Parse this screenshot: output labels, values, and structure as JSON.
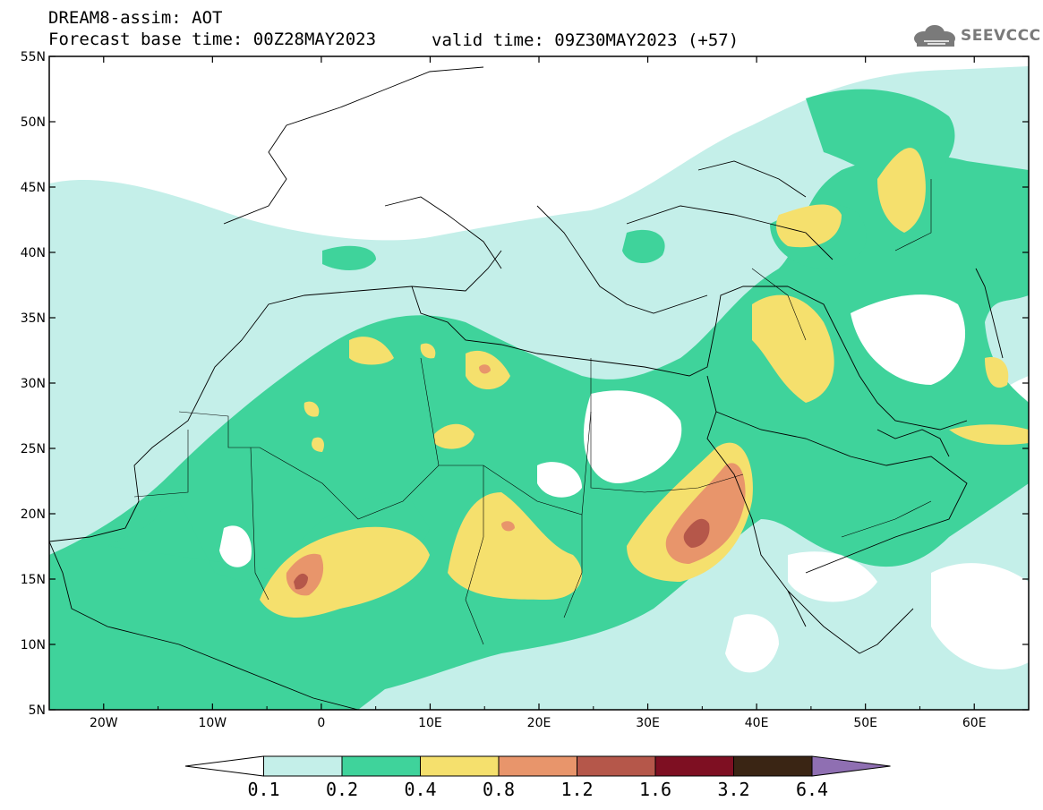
{
  "header": {
    "title": "DREAM8-assim: AOT",
    "base_time": "Forecast base time: 00Z28MAY2023",
    "valid_time": "valid time: 09Z30MAY2023 (+57)"
  },
  "logo": {
    "text": "SEEVCCC",
    "icon": "cloud-icon"
  },
  "map": {
    "lon_range": [
      -25,
      65
    ],
    "lat_range": [
      5,
      55
    ],
    "lat_ticks": [
      "55N",
      "50N",
      "45N",
      "40N",
      "35N",
      "30N",
      "25N",
      "20N",
      "15N",
      "10N",
      "5N"
    ],
    "lon_ticks": [
      "20W",
      "10W",
      "0",
      "10E",
      "20E",
      "30E",
      "40E",
      "50E",
      "60E"
    ]
  },
  "colorbar": {
    "levels": [
      "0.1",
      "0.2",
      "0.4",
      "0.8",
      "1.2",
      "1.6",
      "3.2",
      "6.4"
    ],
    "colors": [
      "#ffffff",
      "#c4efe9",
      "#3fd39b",
      "#f5e06d",
      "#e8956b",
      "#b5574a",
      "#7e0f22",
      "#3a2514",
      "#8f6fb2"
    ]
  },
  "palette": {
    "very_light": "#c4efe9",
    "green": "#3fd39b",
    "yellow": "#f5e06d",
    "orange": "#e8956b",
    "brown": "#b5574a"
  }
}
